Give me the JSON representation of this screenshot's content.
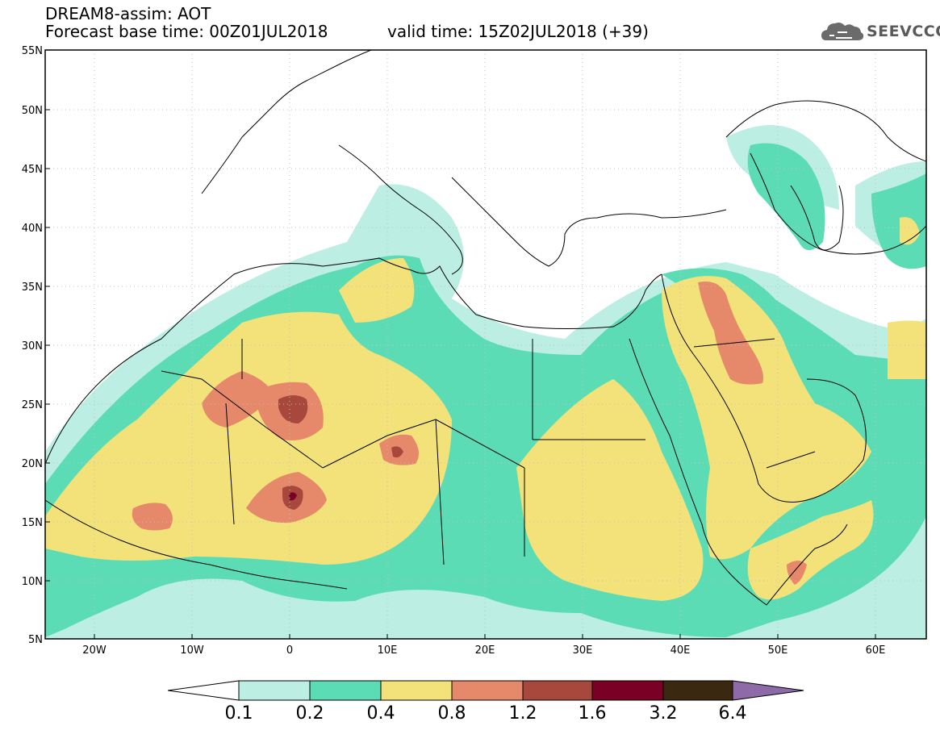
{
  "header": {
    "title": "DREAM8-assim: AOT",
    "base_time": "Forecast base time: 00Z01JUL2018",
    "valid_time": "valid time: 15Z02JUL2018 (+39)",
    "logo_text": "SEEVCCC"
  },
  "map": {
    "lat_labels": [
      "55N",
      "50N",
      "45N",
      "40N",
      "35N",
      "30N",
      "25N",
      "20N",
      "15N",
      "10N",
      "5N"
    ],
    "lon_labels": [
      "20W",
      "10W",
      "0",
      "10E",
      "20E",
      "30E",
      "40E",
      "50E",
      "60E"
    ],
    "extent": {
      "lon": [
        -25,
        65
      ],
      "lat": [
        5,
        55
      ]
    }
  },
  "colorbar": {
    "labels": [
      "0.1",
      "0.2",
      "0.4",
      "0.8",
      "1.2",
      "1.6",
      "3.2",
      "6.4"
    ],
    "colors": [
      "#ffffff",
      "#bdeee4",
      "#5bdcb4",
      "#f3e27a",
      "#e6896a",
      "#a8473b",
      "#7a0025",
      "#3a2810",
      "#8f6aa8"
    ]
  }
}
